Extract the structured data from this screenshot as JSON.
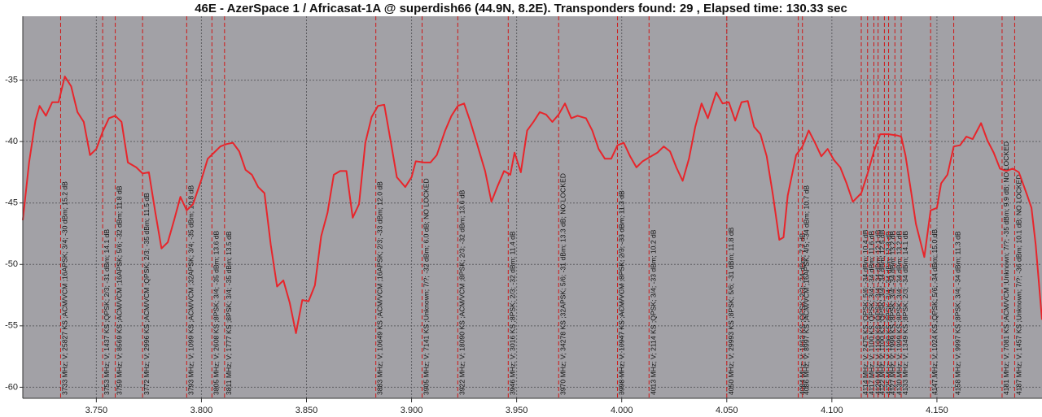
{
  "chart_data": {
    "type": "line",
    "title": "46E - AzerSpace 1 / Africasat-1A @ superdish66 (44.9N, 8.2E). Transponders found: 29 , Elapsed time: 130.33 sec",
    "x": [
      3.715,
      3.718,
      3.721,
      3.723,
      3.726,
      3.729,
      3.732,
      3.735,
      3.738,
      3.741,
      3.744,
      3.747,
      3.75,
      3.753,
      3.756,
      3.759,
      3.762,
      3.765,
      3.769,
      3.772,
      3.775,
      3.778,
      3.781,
      3.784,
      3.787,
      3.79,
      3.793,
      3.796,
      3.8,
      3.803,
      3.806,
      3.809,
      3.812,
      3.815,
      3.818,
      3.821,
      3.824,
      3.827,
      3.83,
      3.833,
      3.836,
      3.839,
      3.842,
      3.845,
      3.848,
      3.851,
      3.854,
      3.857,
      3.86,
      3.863,
      3.866,
      3.869,
      3.872,
      3.875,
      3.878,
      3.881,
      3.884,
      3.887,
      3.89,
      3.893,
      3.897,
      3.9,
      3.902,
      3.906,
      3.909,
      3.912,
      3.916,
      3.919,
      3.922,
      3.925,
      3.928,
      3.931,
      3.935,
      3.938,
      3.941,
      3.944,
      3.947,
      3.949,
      3.952,
      3.955,
      3.958,
      3.961,
      3.964,
      3.967,
      3.97,
      3.973,
      3.976,
      3.979,
      3.983,
      3.986,
      3.989,
      3.992,
      3.995,
      3.998,
      4.001,
      4.004,
      4.007,
      4.01,
      4.014,
      4.017,
      4.02,
      4.023,
      4.026,
      4.029,
      4.032,
      4.035,
      4.038,
      4.041,
      4.045,
      4.048,
      4.051,
      4.054,
      4.057,
      4.06,
      4.063,
      4.066,
      4.069,
      4.072,
      4.075,
      4.077,
      4.079,
      4.083,
      4.086,
      4.089,
      4.092,
      4.095,
      4.098,
      4.101,
      4.104,
      4.107,
      4.11,
      4.114,
      4.117,
      4.12,
      4.123,
      4.127,
      4.131,
      4.133,
      4.135,
      4.138,
      4.14,
      4.144,
      4.147,
      4.15,
      4.152,
      4.155,
      4.158,
      4.161,
      4.164,
      4.167,
      4.171,
      4.174,
      4.177,
      4.18,
      4.183,
      4.186,
      4.189,
      4.193,
      4.195,
      4.197,
      4.2
    ],
    "values": [
      -46.4,
      -41.7,
      -38.3,
      -37.1,
      -37.9,
      -36.8,
      -36.8,
      -34.7,
      -35.5,
      -37.6,
      -38.4,
      -41.1,
      -40.6,
      -39.2,
      -38.1,
      -37.9,
      -38.4,
      -41.7,
      -42.1,
      -42.6,
      -42.5,
      -45.7,
      -48.7,
      -48.2,
      -46.4,
      -44.5,
      -45.6,
      -45.1,
      -43.1,
      -41.4,
      -40.9,
      -40.4,
      -40.2,
      -40.1,
      -40.8,
      -42.3,
      -42.7,
      -43.7,
      -44.2,
      -48.4,
      -51.8,
      -51.3,
      -53.1,
      -55.6,
      -52.9,
      -53.0,
      -51.7,
      -47.7,
      -45.8,
      -42.7,
      -42.4,
      -42.4,
      -46.2,
      -45.1,
      -40.1,
      -38.0,
      -37.1,
      -37.0,
      -39.9,
      -42.9,
      -43.7,
      -42.9,
      -41.6,
      -41.7,
      -41.7,
      -41.1,
      -39.1,
      -37.9,
      -37.1,
      -36.9,
      -38.4,
      -40.1,
      -42.4,
      -44.9,
      -43.6,
      -42.4,
      -42.7,
      -40.9,
      -42.5,
      -39.1,
      -38.4,
      -37.6,
      -37.8,
      -38.4,
      -37.8,
      -36.9,
      -38.1,
      -37.9,
      -38.1,
      -39.1,
      -40.6,
      -41.4,
      -41.4,
      -40.3,
      -40.1,
      -41.2,
      -42.1,
      -41.6,
      -41.2,
      -40.9,
      -40.4,
      -40.8,
      -42.1,
      -43.2,
      -41.4,
      -38.8,
      -36.9,
      -38.1,
      -36.0,
      -36.9,
      -36.8,
      -38.3,
      -36.8,
      -36.7,
      -38.8,
      -39.4,
      -41.2,
      -44.4,
      -48.0,
      -47.8,
      -44.4,
      -41.1,
      -40.4,
      -39.1,
      -40.1,
      -41.2,
      -40.6,
      -41.5,
      -42.1,
      -43.4,
      -44.9,
      -44.2,
      -42.6,
      -40.8,
      -39.4,
      -39.4,
      -39.5,
      -39.6,
      -41.1,
      -44.4,
      -46.7,
      -49.4,
      -45.6,
      -45.4,
      -43.4,
      -42.7,
      -40.4,
      -40.3,
      -39.6,
      -39.8,
      -38.5,
      -39.9,
      -40.9,
      -42.2,
      -42.4,
      -42.2,
      -42.5,
      -44.4,
      -45.4,
      -48.4,
      -54.5
    ],
    "color": "#e8252b",
    "plot_color": "#a2a1a6",
    "grid": true,
    "xlim": [
      3.715,
      4.2
    ],
    "ylim": [
      -60.9,
      -29.8
    ],
    "xticks": [
      {
        "value": 3.75,
        "label": "3.750"
      },
      {
        "value": 3.8,
        "label": "3.800"
      },
      {
        "value": 3.85,
        "label": "3.850"
      },
      {
        "value": 3.9,
        "label": "3.900"
      },
      {
        "value": 3.95,
        "label": "3.950"
      },
      {
        "value": 4.0,
        "label": "4.000"
      },
      {
        "value": 4.05,
        "label": "4.050"
      },
      {
        "value": 4.1,
        "label": "4.100"
      },
      {
        "value": 4.15,
        "label": "4.150"
      }
    ],
    "yticks": [
      -60,
      -55,
      -50,
      -45,
      -40,
      -35
    ],
    "marker_color": "#d01818",
    "markers": [
      {
        "x": 3.733,
        "label": "3733 MHz; V; 25827 KS ;ACM/VCM ;16APSK; 3/4; -30 dBm; 15.2 dB"
      },
      {
        "x": 3.753,
        "label": "3753 MHz; V; 1437 KS ;QPSK; 2/3; -31 dBm; 14.1 dB"
      },
      {
        "x": 3.759,
        "label": "3759 MHz; V; 8569 KS ;ACM/VCM ;16APSK; 5/6; -32 dBm; 11.8 dB"
      },
      {
        "x": 3.772,
        "label": "3772 MHz; V; 2996 KS ;ACM/VCM ;QPSK; 2/3; -35 dBm; 11.5 dB"
      },
      {
        "x": 3.793,
        "label": "3793 MHz; V; 1099 KS ;ACM/VCM ;32APSK; 3/4; -35 dBm; 10.8 dB"
      },
      {
        "x": 3.805,
        "label": "3805 MHz; V; 2608 KS ;8PSK; 3/4; -35 dBm; 13.6 dB"
      },
      {
        "x": 3.811,
        "label": "3811 MHz; V; 1777 KS ;8PSK; 3/4; -35 dBm; 13.5 dB"
      },
      {
        "x": 3.883,
        "label": "3883 MHz; V; 10649 KS ;ACM/VCM ;16APSK; 2/3; -33 dBm; 12.0 dB"
      },
      {
        "x": 3.905,
        "label": "3905 MHz; V; 7141 KS ;Unknown; 7/?; -32 dBm; 6.0 dB; NO LOCKED"
      },
      {
        "x": 3.922,
        "label": "3922 MHz; V; 18090 KS ;ACM/VCM ;8PSK; 2/3; -32 dBm; 13.6 dB"
      },
      {
        "x": 3.946,
        "label": "3946 MHz; V; 3016 KS ;8PSK; 2/3; -32 dBm; 11.4 dB"
      },
      {
        "x": 3.97,
        "label": "3970 MHz; V; 34278 KS ;32APSK; 5/6; -31 dBm; 13.3 dB; NO LOCKED"
      },
      {
        "x": 3.998,
        "label": "3998 MHz; V; 10947 KS ;ACM/VCM ;8PSK; 2/3; -33 dBm; 11.3 dB"
      },
      {
        "x": 4.013,
        "label": "4013 MHz; V; 2114 KS ;QPSK; 3/4; -33 dBm; 10.2 dB"
      },
      {
        "x": 4.05,
        "label": "4050 MHz; V; 29993 KS ;8PSK; 5/6; -31 dBm; 11.8 dB"
      },
      {
        "x": 4.084,
        "label": "4084 MHz; V; 1863 KS ;QPSK; 2/3; -34 dBm; 7.7 dB"
      },
      {
        "x": 4.086,
        "label": "4086 MHz; V; 8997 KS ;ACM/VCM ;16APSK; 4/5; -34 dBm; 10.7 dB"
      },
      {
        "x": 4.114,
        "label": "4114 MHz; V; 2475 KS ;QPSK; 5/6; -34 dBm; 10.4 dB"
      },
      {
        "x": 4.117,
        "label": "4117 MHz; V; 1100 KS ;QPSK; 3/4; -34 dBm; 11.6 dB"
      },
      {
        "x": 4.12,
        "label": "4120 MHz; V; 1100 KS ;QPSK; 3/4; -34 dBm; 12.1 dB"
      },
      {
        "x": 4.122,
        "label": "4122 MHz; V; 1100 KS ;QPSK; 3/4; -34 dBm; 12.5 dB"
      },
      {
        "x": 4.125,
        "label": "4125 MHz; V; 1100 KS ;8PSK; 3/4; -34 dBm; 12.8 dB"
      },
      {
        "x": 4.127,
        "label": "4127 MHz; V; 1999 KS ;8PSK; 3/4; -34 dBm; 13.2 dB"
      },
      {
        "x": 4.13,
        "label": "4130 MHz; V; 1999 KS ;8PSK; 3/4; -34 dBm; 13.2 dB"
      },
      {
        "x": 4.133,
        "label": "4133 MHz; V; 1349 KS ;8PSK; 2/3; -34 dBm; 14.1 dB"
      },
      {
        "x": 4.147,
        "label": "4147 MHz; V; 1024 KS ;QPSK; 5/6; -34 dBm; 15.0 dB"
      },
      {
        "x": 4.158,
        "label": "4158 MHz; V; 9997 KS ;8PSK; 3/4; -34 dBm; 11.3 dB"
      },
      {
        "x": 4.181,
        "label": "4181 MHz; V; 7081 KS ;ACM/VCM ;Unknown; 7/?; -35 dBm; 9.9 dB; NO LOCKED"
      },
      {
        "x": 4.187,
        "label": "4187 MHz; V; 1457 KS ;Unknown; 7/?; -36 dBm; 10.1 dB; NO LOCKED"
      }
    ]
  }
}
